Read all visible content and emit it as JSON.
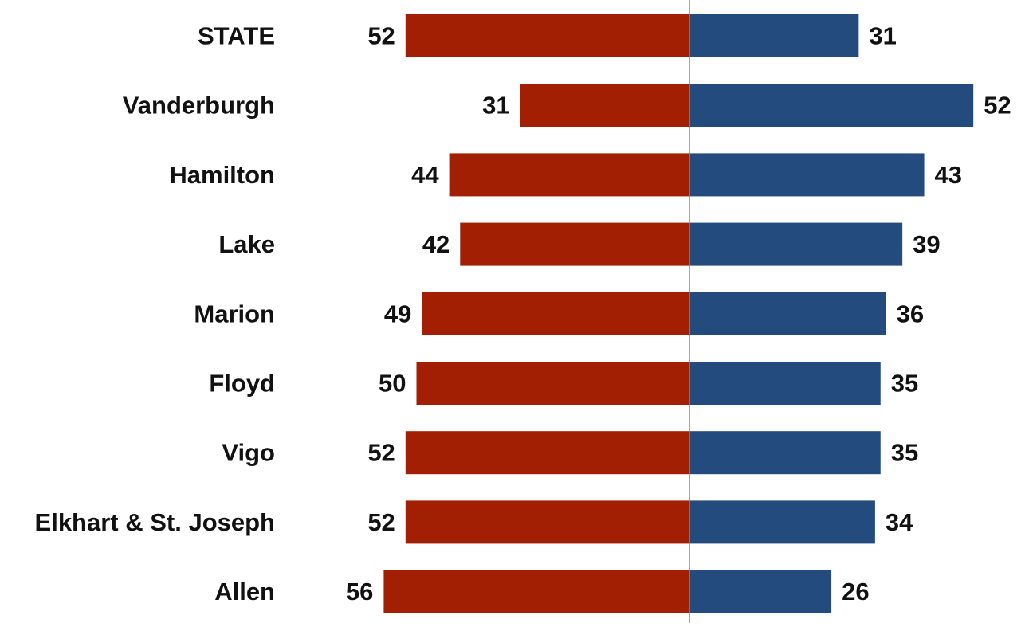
{
  "chart_data": {
    "type": "bar",
    "orientation": "horizontal-diverging",
    "title": "",
    "xlabel": "",
    "ylabel": "",
    "categories": [
      "STATE",
      "Vanderburgh",
      "Hamilton",
      "Lake",
      "Marion",
      "Floyd",
      "Vigo",
      "Elkhart & St. Joseph",
      "Allen"
    ],
    "series": [
      {
        "color": "#a21f04",
        "direction": "left",
        "values": [
          52,
          31,
          44,
          42,
          49,
          50,
          52,
          52,
          56
        ]
      },
      {
        "color": "#234b7e",
        "direction": "right",
        "values": [
          31,
          52,
          43,
          39,
          36,
          35,
          35,
          34,
          26
        ]
      }
    ],
    "xlim": [
      0,
      56
    ],
    "grid": false,
    "legend": "none",
    "data_labels": true
  }
}
